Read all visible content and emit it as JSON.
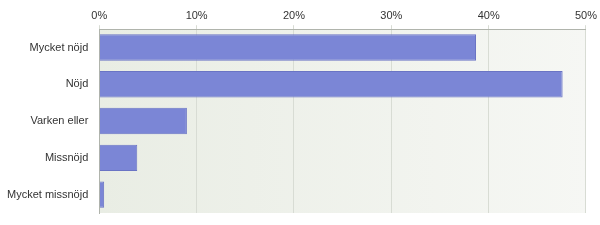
{
  "chart_data": {
    "type": "bar",
    "orientation": "horizontal",
    "categories": [
      "Mycket nöjd",
      "Nöjd",
      "Varken eller",
      "Missnöjd",
      "Mycket missnöjd"
    ],
    "values": [
      38.7,
      47.6,
      9.0,
      3.9,
      0.5
    ],
    "color": "#7b86d6",
    "xlim": [
      0,
      50
    ],
    "xticks": [
      {
        "value": 0,
        "label": "0%"
      },
      {
        "value": 10,
        "label": "10%"
      },
      {
        "value": 20,
        "label": "20%"
      },
      {
        "value": 30,
        "label": "30%"
      },
      {
        "value": 40,
        "label": "40%"
      },
      {
        "value": 50,
        "label": "50%"
      }
    ],
    "grid": true
  }
}
